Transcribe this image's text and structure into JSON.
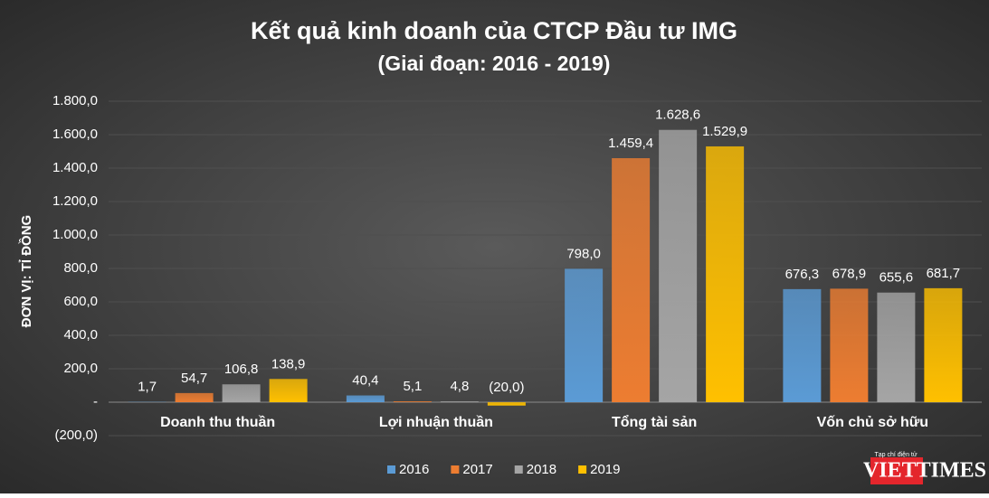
{
  "chart_data": {
    "type": "bar",
    "title": "Kết quả kinh doanh của CTCP Đầu tư IMG",
    "subtitle": "(Giai đoạn: 2016 - 2019)",
    "y_label": "ĐƠN VỊ: TỈ ĐỒNG",
    "categories": [
      "Doanh thu thuần",
      "Lợi nhuận thuần",
      "Tổng tài sản",
      "Vốn chủ sở hữu"
    ],
    "series": [
      {
        "name": "2016",
        "color": "#5b9bd5",
        "values": [
          1.7,
          40.4,
          798.0,
          676.3
        ],
        "value_labels": [
          "1,7",
          "40,4",
          "798,0",
          "676,3"
        ]
      },
      {
        "name": "2017",
        "color": "#ed7d31",
        "values": [
          54.7,
          5.1,
          1459.4,
          678.9
        ],
        "value_labels": [
          "54,7",
          "5,1",
          "1.459,4",
          "678,9"
        ]
      },
      {
        "name": "2018",
        "color": "#a5a5a5",
        "values": [
          106.8,
          4.8,
          1628.6,
          655.6
        ],
        "value_labels": [
          "106,8",
          "4,8",
          "1.628,6",
          "655,6"
        ]
      },
      {
        "name": "2019",
        "color": "#ffc000",
        "values": [
          138.9,
          -20.0,
          1529.9,
          681.7
        ],
        "value_labels": [
          "138,9",
          "(20,0)",
          "1.529,9",
          "681,7"
        ]
      }
    ],
    "ylim": [
      -200,
      1800
    ],
    "yticks": [
      {
        "value": -200,
        "label": "(200,0)"
      },
      {
        "value": 0,
        "label": "-"
      },
      {
        "value": 200,
        "label": "200,0"
      },
      {
        "value": 400,
        "label": "400,0"
      },
      {
        "value": 600,
        "label": "600,0"
      },
      {
        "value": 800,
        "label": "800,0"
      },
      {
        "value": 1000,
        "label": "1.000,0"
      },
      {
        "value": 1200,
        "label": "1.200,0"
      },
      {
        "value": 1400,
        "label": "1.400,0"
      },
      {
        "value": 1600,
        "label": "1.600,0"
      },
      {
        "value": 1800,
        "label": "1.800,0"
      }
    ],
    "grid": true,
    "legend": "bottom"
  },
  "branding": {
    "tagline": "Tạp chí điện tử",
    "logo": "VIETTIMES"
  }
}
